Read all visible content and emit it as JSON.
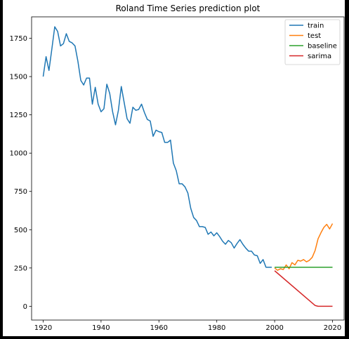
{
  "chart_data": {
    "type": "line",
    "title": "Roland Time Series prediction plot",
    "xlabel": "",
    "ylabel": "",
    "xlim": [
      1916,
      2024
    ],
    "ylim": [
      -90,
      1890
    ],
    "xticks": [
      1920,
      1940,
      1960,
      1980,
      2000,
      2020
    ],
    "yticks": [
      0,
      250,
      500,
      750,
      1000,
      1250,
      1500,
      1750
    ],
    "grid": false,
    "legend_position": "top-right",
    "series": [
      {
        "name": "train",
        "color": "#1f77b4",
        "x": [
          1920,
          1921,
          1922,
          1923,
          1924,
          1925,
          1926,
          1927,
          1928,
          1929,
          1930,
          1931,
          1932,
          1933,
          1934,
          1935,
          1936,
          1937,
          1938,
          1939,
          1940,
          1941,
          1942,
          1943,
          1944,
          1945,
          1946,
          1947,
          1948,
          1949,
          1950,
          1951,
          1952,
          1953,
          1954,
          1955,
          1956,
          1957,
          1958,
          1959,
          1960,
          1961,
          1962,
          1963,
          1964,
          1965,
          1966,
          1967,
          1968,
          1969,
          1970,
          1971,
          1972,
          1973,
          1974,
          1975,
          1976,
          1977,
          1978,
          1979,
          1980,
          1981,
          1982,
          1983,
          1984,
          1985,
          1986,
          1987,
          1988,
          1989,
          1990,
          1991,
          1992,
          1993,
          1994,
          1995,
          1996,
          1997,
          1998,
          1999
        ],
        "y": [
          1500,
          1630,
          1540,
          1680,
          1825,
          1795,
          1700,
          1715,
          1780,
          1730,
          1720,
          1700,
          1600,
          1475,
          1445,
          1490,
          1490,
          1320,
          1430,
          1320,
          1270,
          1290,
          1450,
          1390,
          1270,
          1185,
          1280,
          1435,
          1330,
          1225,
          1195,
          1300,
          1280,
          1285,
          1320,
          1265,
          1220,
          1210,
          1110,
          1150,
          1140,
          1135,
          1070,
          1070,
          1085,
          935,
          885,
          800,
          800,
          780,
          740,
          640,
          580,
          560,
          520,
          520,
          515,
          470,
          485,
          460,
          480,
          455,
          425,
          405,
          430,
          415,
          380,
          410,
          435,
          405,
          380,
          360,
          360,
          335,
          330,
          280,
          305,
          255,
          255,
          255
        ]
      },
      {
        "name": "test",
        "color": "#ff7f0e",
        "x": [
          2000,
          2001,
          2002,
          2003,
          2004,
          2005,
          2006,
          2007,
          2008,
          2009,
          2010,
          2011,
          2012,
          2013,
          2014,
          2015,
          2016,
          2017,
          2018,
          2019,
          2020
        ],
        "y": [
          250,
          235,
          245,
          240,
          270,
          245,
          285,
          270,
          300,
          295,
          305,
          290,
          300,
          320,
          365,
          440,
          480,
          515,
          535,
          505,
          540
        ]
      },
      {
        "name": "baseline",
        "color": "#2ca02c",
        "x": [
          2000,
          2020
        ],
        "y": [
          255,
          255
        ]
      },
      {
        "name": "sarima",
        "color": "#d62728",
        "x": [
          2000,
          2014,
          2015,
          2020
        ],
        "y": [
          232,
          5,
          0,
          0
        ]
      }
    ]
  }
}
